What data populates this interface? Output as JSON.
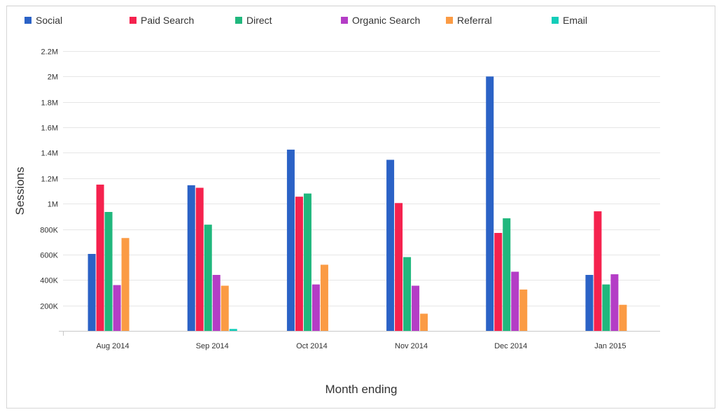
{
  "chart_data": {
    "type": "bar",
    "title": "",
    "xlabel": "Month ending",
    "ylabel": "Sessions",
    "ylim": [
      0,
      2200000
    ],
    "yticks": [
      {
        "value": 200000,
        "label": "200K"
      },
      {
        "value": 400000,
        "label": "400K"
      },
      {
        "value": 600000,
        "label": "600K"
      },
      {
        "value": 800000,
        "label": "800K"
      },
      {
        "value": 1000000,
        "label": "1M"
      },
      {
        "value": 1200000,
        "label": "1.2M"
      },
      {
        "value": 1400000,
        "label": "1.4M"
      },
      {
        "value": 1600000,
        "label": "1.6M"
      },
      {
        "value": 1800000,
        "label": "1.8M"
      },
      {
        "value": 2000000,
        "label": "2M"
      },
      {
        "value": 2200000,
        "label": "2.2M"
      }
    ],
    "grid": true,
    "legend_position": "top",
    "categories": [
      "Aug 2014",
      "Sep 2014",
      "Oct 2014",
      "Nov 2014",
      "Dec 2014",
      "Jan 2015"
    ],
    "series": [
      {
        "name": "Social",
        "color": "#2b62c6",
        "values": [
          605000,
          1145000,
          1425000,
          1345000,
          2000000,
          440000
        ]
      },
      {
        "name": "Paid Search",
        "color": "#f5224e",
        "values": [
          1150000,
          1125000,
          1055000,
          1005000,
          770000,
          940000
        ]
      },
      {
        "name": "Direct",
        "color": "#20b77d",
        "values": [
          935000,
          835000,
          1080000,
          580000,
          885000,
          365000
        ]
      },
      {
        "name": "Organic Search",
        "color": "#b43dc6",
        "values": [
          360000,
          440000,
          365000,
          355000,
          465000,
          445000
        ]
      },
      {
        "name": "Referral",
        "color": "#fb9b44",
        "values": [
          730000,
          355000,
          520000,
          135000,
          325000,
          205000
        ]
      },
      {
        "name": "Email",
        "color": "#13cdb9",
        "values": [
          0,
          15000,
          0,
          0,
          0,
          0
        ]
      }
    ]
  }
}
